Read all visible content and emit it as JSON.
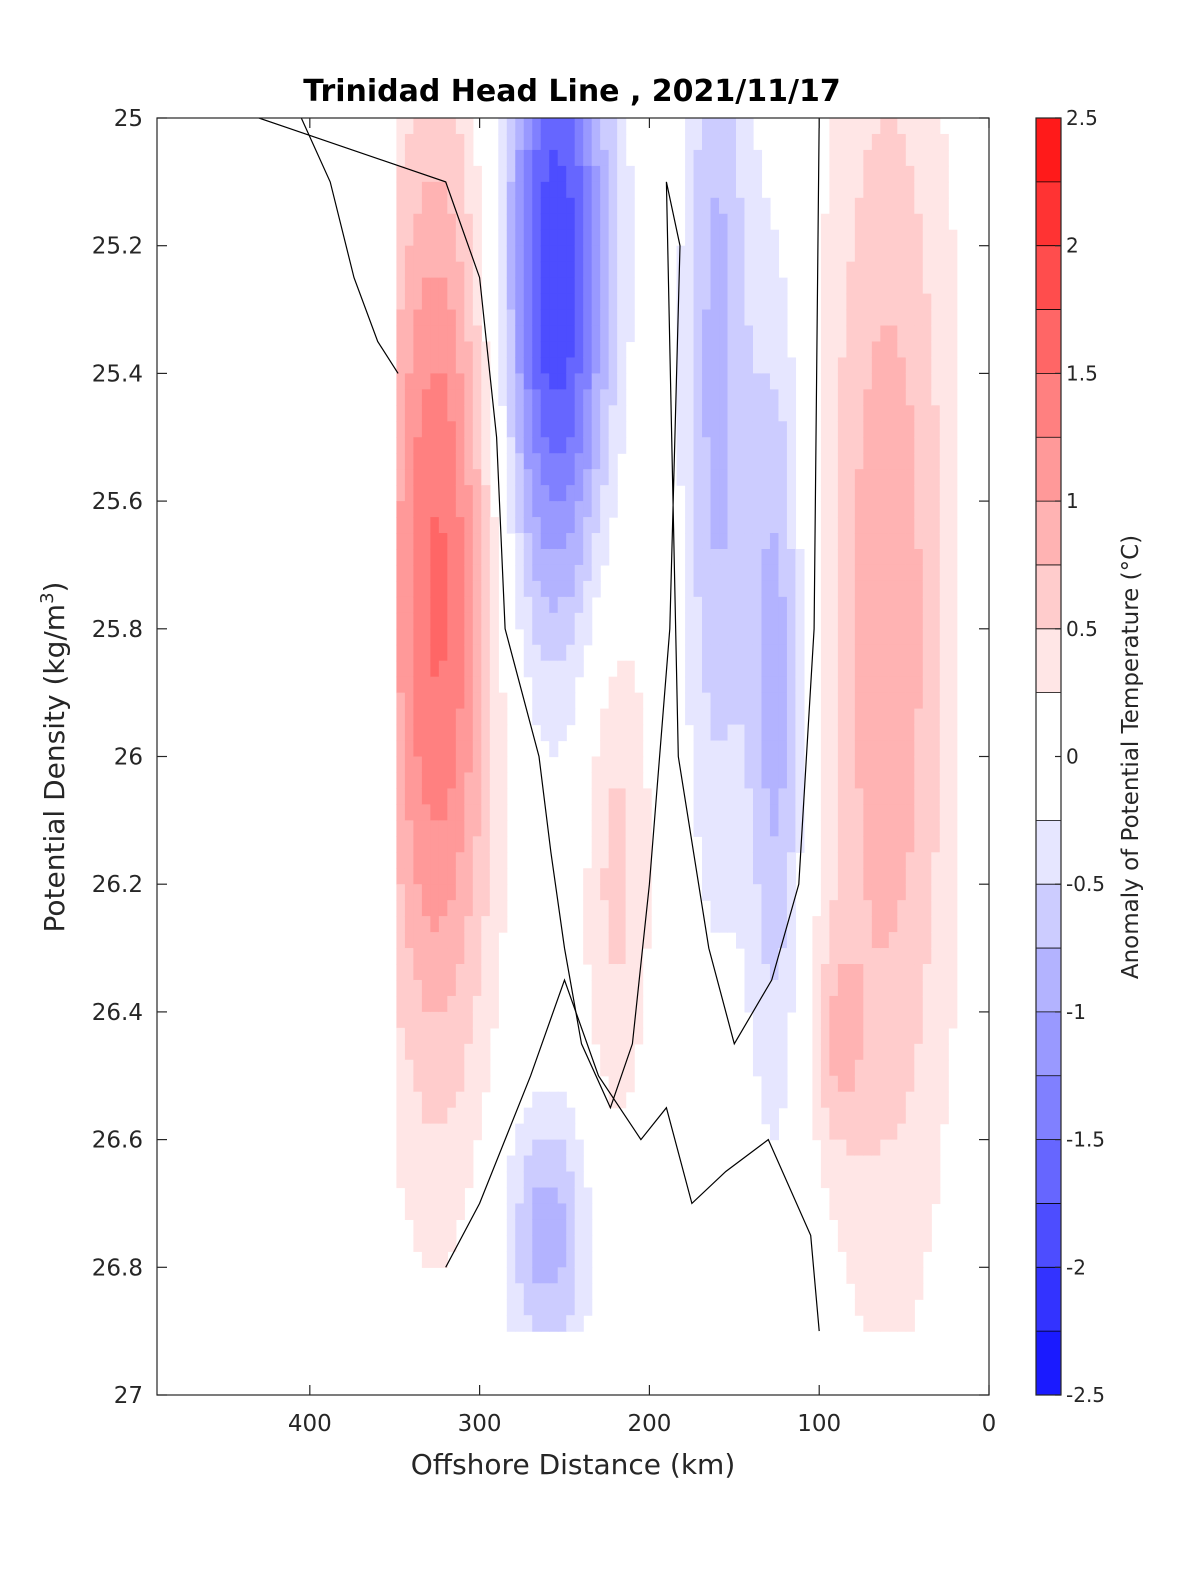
{
  "chart_data": {
    "type": "heatmap",
    "subtype": "filled-contour",
    "title": "Trinidad Head Line , 2021/11/17",
    "xlabel": "Offshore Distance (km)",
    "ylabel": "Potential Density (kg/m",
    "ylabel_superscript": "3",
    "ylabel_suffix": ")",
    "xlim": [
      490,
      0
    ],
    "x_reversed": true,
    "ylim": [
      25,
      27
    ],
    "y_reversed": true,
    "x_ticks": [
      400,
      300,
      200,
      100,
      0
    ],
    "x_tick_labels": [
      "400",
      "300",
      "200",
      "100",
      "0"
    ],
    "y_ticks": [
      25,
      25.2,
      25.4,
      25.6,
      25.8,
      26,
      26.2,
      26.4,
      26.6,
      26.8,
      27
    ],
    "y_tick_labels": [
      "25",
      "25.2",
      "25.4",
      "25.6",
      "25.8",
      "26",
      "26.2",
      "26.4",
      "26.6",
      "26.8",
      "27"
    ],
    "grid": false,
    "colorbar": {
      "label": "Anomaly of Potential Temperature (°C)",
      "limits": [
        -2.5,
        2.5
      ],
      "levels": [
        -2.5,
        -2.25,
        -2,
        -1.75,
        -1.5,
        -1.25,
        -1,
        -0.75,
        -0.5,
        -0.25,
        0.25,
        0.5,
        0.75,
        1,
        1.25,
        1.5,
        1.75,
        2,
        2.25,
        2.5
      ],
      "ticks": [
        2.5,
        2,
        1.5,
        1,
        0.5,
        0,
        -0.5,
        -1,
        -1.5,
        -2,
        -2.5
      ],
      "tick_labels": [
        "2.5",
        "2",
        "1.5",
        "1",
        "0.5",
        "0",
        "-0.5",
        "-1",
        "-1.5",
        "-2",
        "-2.5"
      ],
      "colors": [
        "#0000ff",
        "#1a1aff",
        "#3333ff",
        "#4d4dff",
        "#6666ff",
        "#8080ff",
        "#9999ff",
        "#b3b3ff",
        "#ccccff",
        "#e6e6ff",
        "#ffffff",
        "#ffe6e6",
        "#ffcccc",
        "#ffb3b3",
        "#ff9999",
        "#ff8080",
        "#ff6666",
        "#ff4d4d",
        "#ff3333",
        "#ff1a1a",
        "#ff0000"
      ]
    },
    "profile_x": [
      349,
      329,
      309,
      289,
      269,
      249,
      229,
      209,
      189,
      169,
      149,
      129,
      109,
      89,
      69,
      49,
      29,
      20
    ],
    "anomaly_features": [
      {
        "x": 325,
        "y": 25.75,
        "sx": 24,
        "sy": 0.55,
        "amplitude": 1.55
      },
      {
        "x": 255,
        "y": 25.25,
        "sx": 22,
        "sy": 0.38,
        "amplitude": -2.0
      },
      {
        "x": 220,
        "y": 26.15,
        "sx": 15,
        "sy": 0.32,
        "amplitude": 0.6
      },
      {
        "x": 160,
        "y": 25.4,
        "sx": 14,
        "sy": 0.55,
        "amplitude": -0.85
      },
      {
        "x": 125,
        "y": 25.9,
        "sx": 12,
        "sy": 0.45,
        "amplitude": -0.9
      },
      {
        "x": 60,
        "y": 25.8,
        "sx": 28,
        "sy": 0.7,
        "amplitude": 0.95
      },
      {
        "x": 260,
        "y": 26.75,
        "sx": 18,
        "sy": 0.15,
        "amplitude": -0.9
      },
      {
        "x": 90,
        "y": 26.45,
        "sx": 12,
        "sy": 0.12,
        "amplitude": 0.5
      }
    ],
    "zero_contours": [
      {
        "x": [
          430,
          320,
          300,
          290,
          285,
          265,
          258,
          250,
          240,
          223,
          210,
          200,
          188,
          182,
          190,
          183,
          165,
          150,
          128,
          112,
          103,
          100
        ],
        "y": [
          25.0,
          25.1,
          25.25,
          25.5,
          25.8,
          26.0,
          26.15,
          26.3,
          26.45,
          26.55,
          26.45,
          26.2,
          25.8,
          25.2,
          25.1,
          26.0,
          26.3,
          26.45,
          26.35,
          26.2,
          25.8,
          25.0
        ]
      },
      {
        "x": [
          405,
          388,
          374,
          360,
          348
        ],
        "y": [
          25.0,
          25.1,
          25.25,
          25.35,
          25.4
        ]
      },
      {
        "x": [
          320,
          300,
          285,
          270,
          250,
          230,
          205,
          190,
          175,
          155,
          130,
          105,
          100
        ],
        "y": [
          26.8,
          26.7,
          26.6,
          26.5,
          26.35,
          26.5,
          26.6,
          26.55,
          26.7,
          26.65,
          26.6,
          26.75,
          26.9
        ]
      }
    ]
  }
}
